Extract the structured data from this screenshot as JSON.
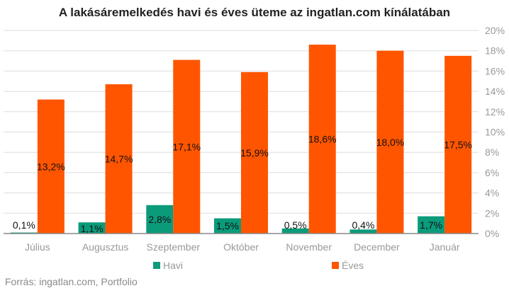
{
  "chart_data": {
    "type": "bar",
    "title": "A lakásáremelkedés havi és éves üteme az ingatlan.com kínálatában",
    "categories": [
      "Július",
      "Augusztus",
      "Szeptember",
      "Október",
      "November",
      "December",
      "Január"
    ],
    "series": [
      {
        "name": "Havi",
        "color": "#0b9b7b",
        "values": [
          0.1,
          1.1,
          2.8,
          1.5,
          0.5,
          0.4,
          1.7
        ],
        "labels": [
          "0,1%",
          "1,1%",
          "2,8%",
          "1,5%",
          "0,5%",
          "0,4%",
          "1,7%"
        ]
      },
      {
        "name": "Éves",
        "color": "#ff5500",
        "values": [
          13.2,
          14.7,
          17.1,
          15.9,
          18.6,
          18.0,
          17.5
        ],
        "labels": [
          "13,2%",
          "14,7%",
          "17,1%",
          "15,9%",
          "18,6%",
          "18,0%",
          "17,5%"
        ]
      }
    ],
    "ylim": [
      0,
      20
    ],
    "yticks": [
      "0%",
      "2%",
      "4%",
      "6%",
      "8%",
      "10%",
      "12%",
      "14%",
      "16%",
      "18%",
      "20%"
    ],
    "y_axis_side": "right",
    "grid": true,
    "legend": "bottom",
    "xlabel": "",
    "ylabel": ""
  },
  "source": "Forrás: ingatlan.com, Portfolio"
}
